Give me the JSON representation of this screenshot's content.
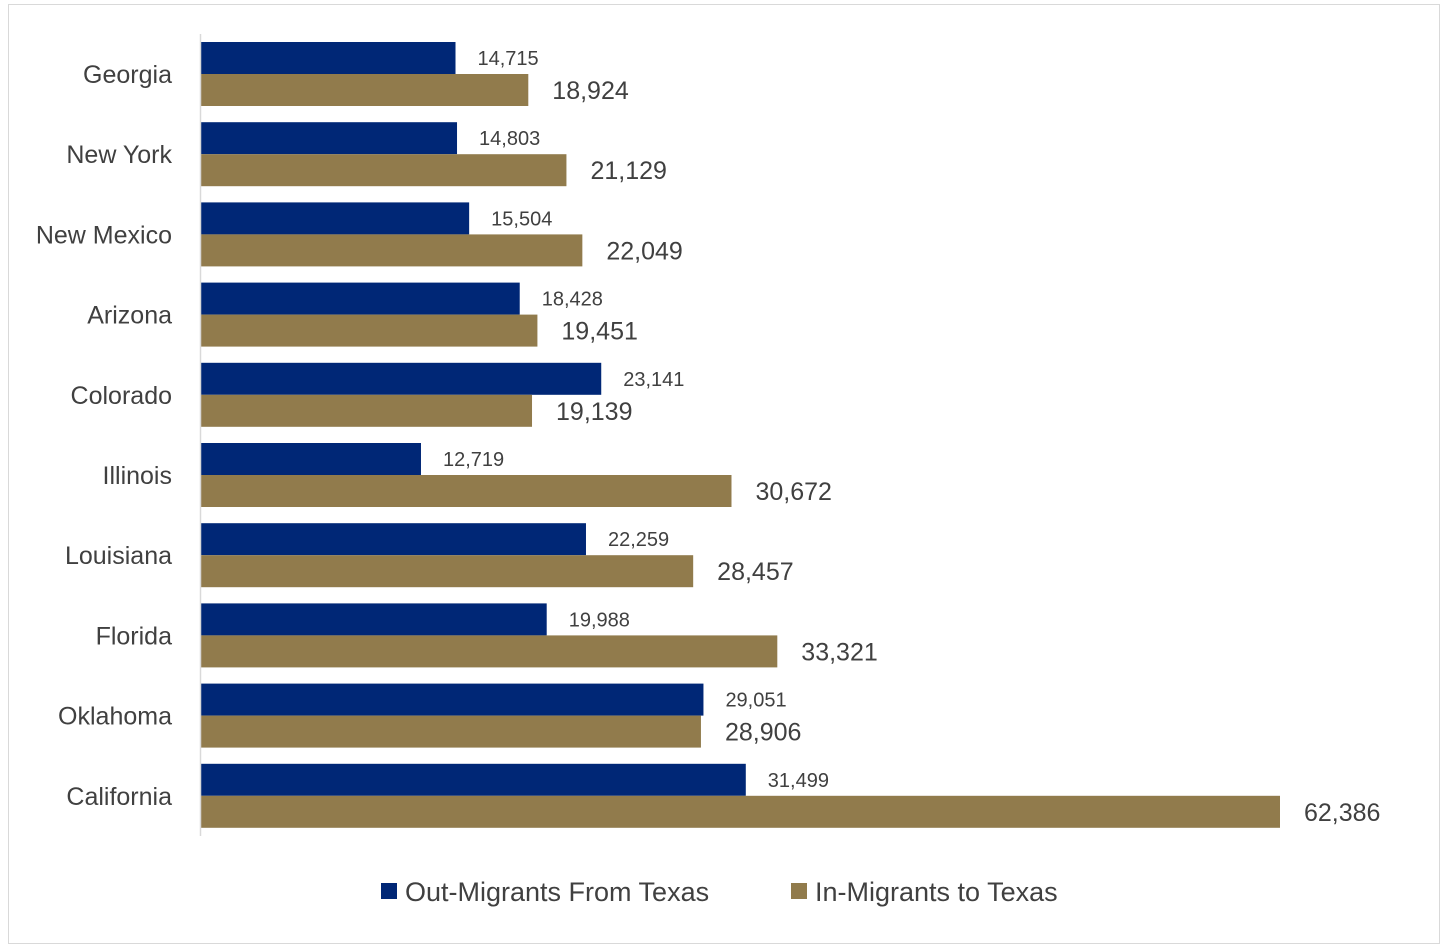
{
  "chart_data": {
    "type": "bar",
    "orientation": "horizontal",
    "title": "",
    "xlabel": "",
    "ylabel": "",
    "categories": [
      "Georgia",
      "New York",
      "New Mexico",
      "Arizona",
      "Colorado",
      "Illinois",
      "Louisiana",
      "Florida",
      "Oklahoma",
      "California"
    ],
    "series": [
      {
        "name": "Out-Migrants From Texas",
        "color": "#002776",
        "values": [
          14715,
          14803,
          15504,
          18428,
          23141,
          12719,
          22259,
          19988,
          29051,
          31499
        ],
        "labels": [
          "14,715",
          "14,803",
          "15,504",
          "18,428",
          "23,141",
          "12,719",
          "22,259",
          "19,988",
          "29,051",
          "31,499"
        ]
      },
      {
        "name": "In-Migrants to Texas",
        "color": "#917B4C",
        "values": [
          18924,
          21129,
          22049,
          19451,
          19139,
          30672,
          28457,
          33321,
          28906,
          62386
        ],
        "labels": [
          "18,924",
          "21,129",
          "22,049",
          "19,451",
          "19,139",
          "30,672",
          "28,457",
          "33,321",
          "28,906",
          "62,386"
        ]
      }
    ],
    "xlim": [
      0,
      62386
    ],
    "grid": false,
    "legend_position": "bottom",
    "axis_color": "#d9d9d9"
  }
}
